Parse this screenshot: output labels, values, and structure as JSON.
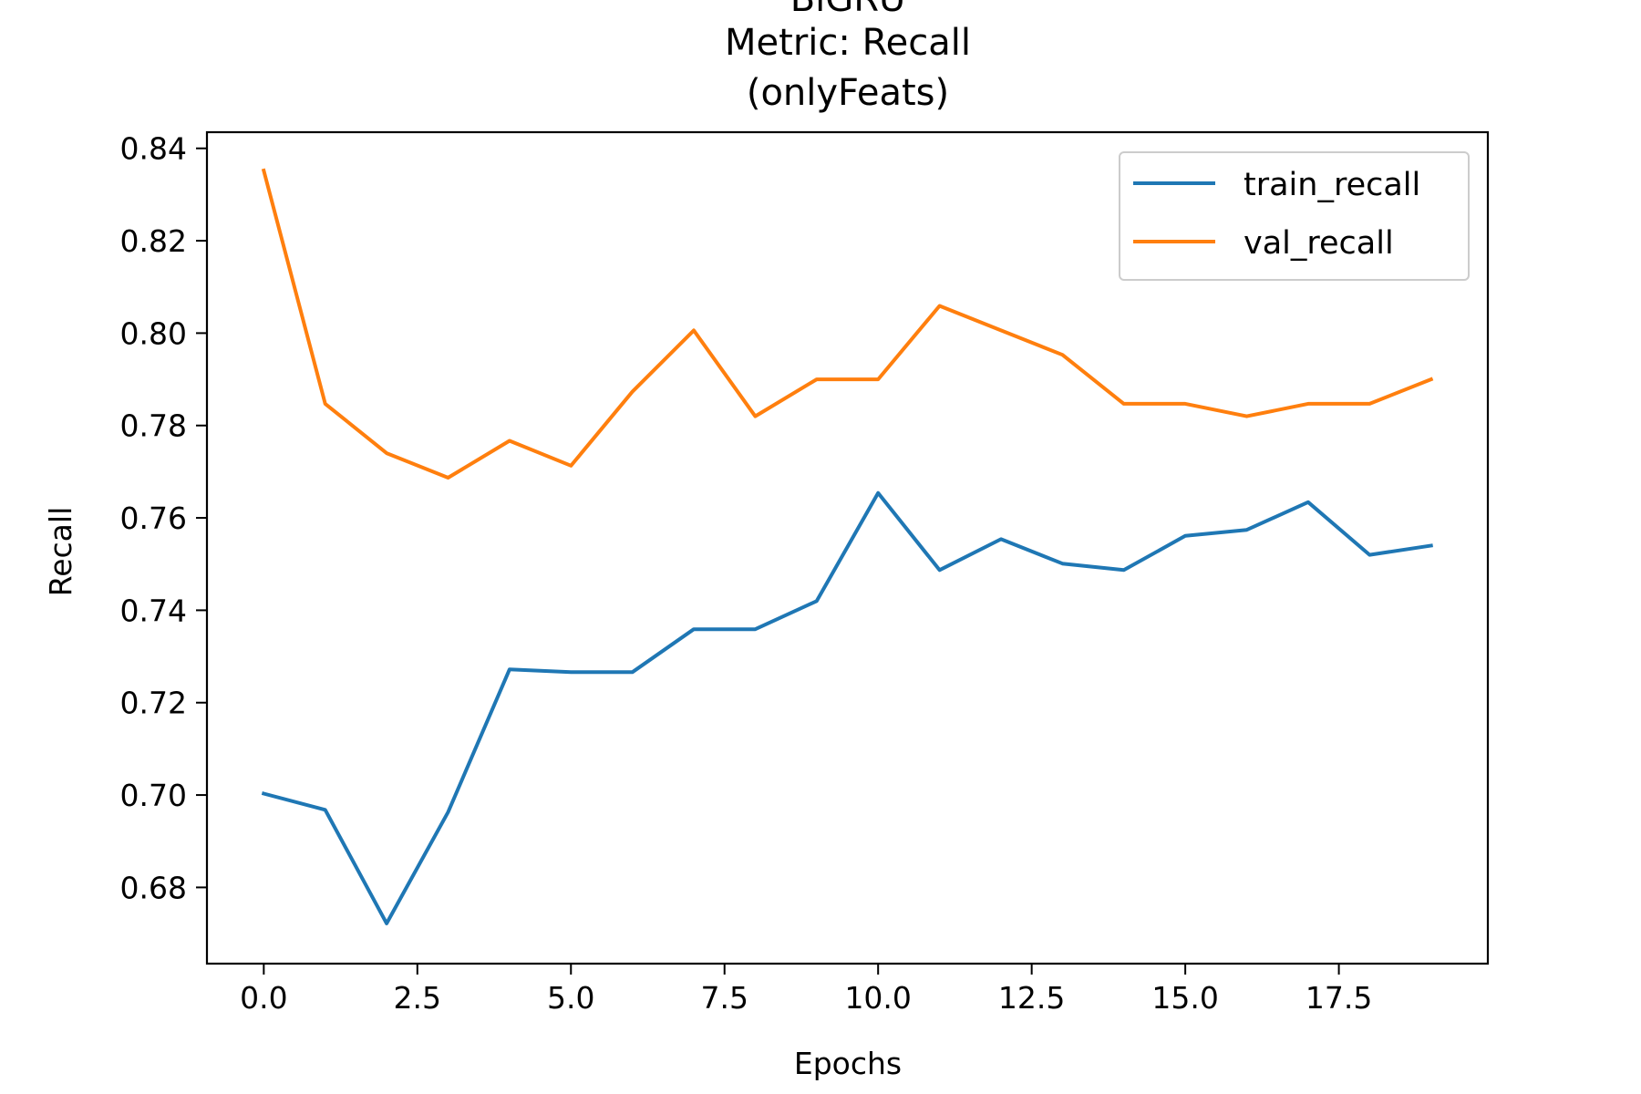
{
  "chart_data": {
    "type": "line",
    "title_lines": [
      "BiGRU",
      "Metric: Recall",
      "(onlyFeats)"
    ],
    "xlabel": "Epochs",
    "ylabel": "Recall",
    "xlim": [
      -0.925,
      19.925
    ],
    "ylim": [
      0.6635,
      0.8435
    ],
    "xticks": [
      0.0,
      2.5,
      5.0,
      7.5,
      10.0,
      12.5,
      15.0,
      17.5
    ],
    "xtick_labels": [
      "0.0",
      "2.5",
      "5.0",
      "7.5",
      "10.0",
      "12.5",
      "15.0",
      "17.5"
    ],
    "yticks": [
      0.68,
      0.7,
      0.72,
      0.74,
      0.76,
      0.78,
      0.8,
      0.82,
      0.84
    ],
    "ytick_labels": [
      "0.68",
      "0.70",
      "0.72",
      "0.74",
      "0.76",
      "0.78",
      "0.80",
      "0.82",
      "0.84"
    ],
    "grid": false,
    "legend_position": "top-right",
    "x": [
      0,
      1,
      2,
      3,
      4,
      5,
      6,
      7,
      8,
      9,
      10,
      11,
      12,
      13,
      14,
      15,
      16,
      17,
      18,
      19
    ],
    "series": [
      {
        "name": "train_recall",
        "color": "#1f77b4",
        "values": [
          0.7003,
          0.6968,
          0.6722,
          0.6963,
          0.7272,
          0.7266,
          0.7266,
          0.7359,
          0.7359,
          0.742,
          0.7654,
          0.7487,
          0.7554,
          0.7501,
          0.7487,
          0.7561,
          0.7574,
          0.7634,
          0.752,
          0.754
        ]
      },
      {
        "name": "val_recall",
        "color": "#ff7f0e",
        "values": [
          0.8352,
          0.7847,
          0.774,
          0.7687,
          0.7767,
          0.7713,
          0.7873,
          0.8006,
          0.782,
          0.79,
          0.79,
          0.8059,
          0.8006,
          0.7953,
          0.7847,
          0.7847,
          0.782,
          0.7847,
          0.7847,
          0.79
        ]
      }
    ]
  }
}
